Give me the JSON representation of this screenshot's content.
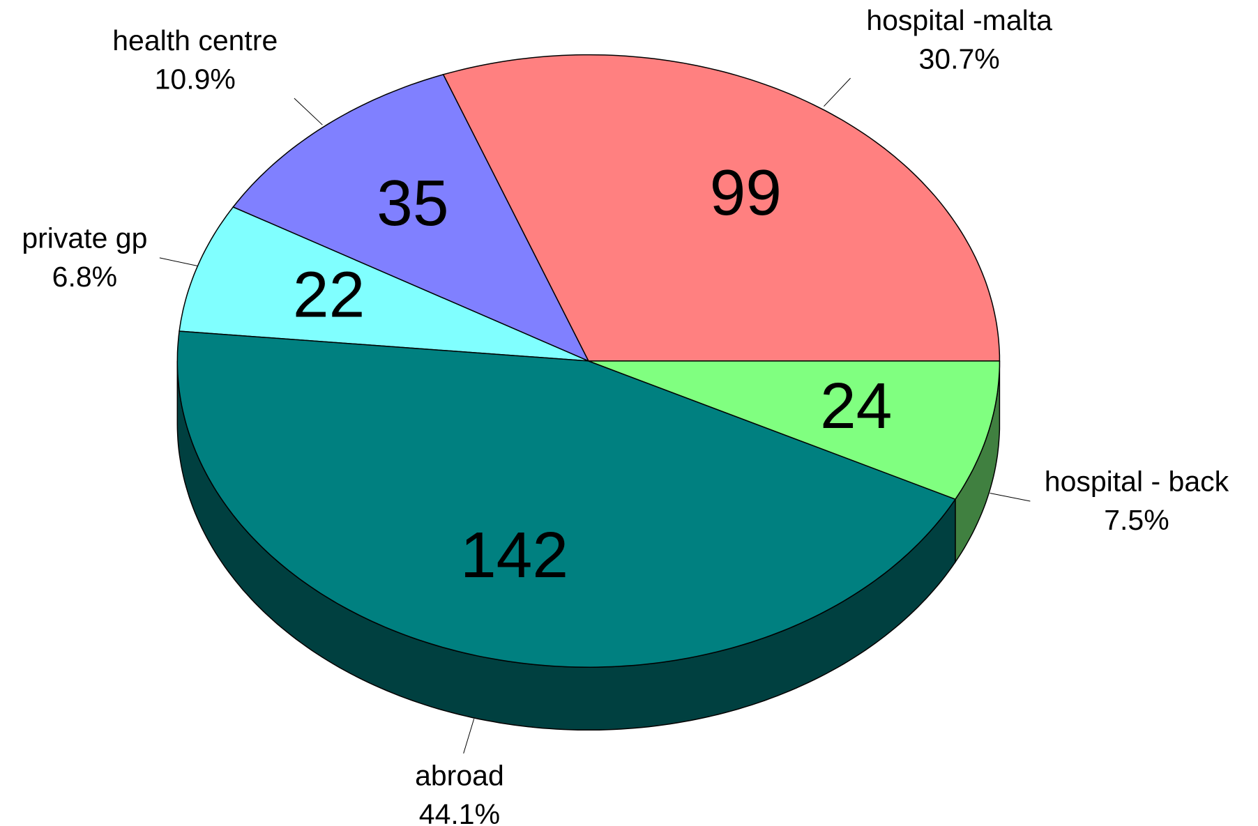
{
  "chart_data": {
    "type": "pie",
    "categories": [
      "hospital -malta",
      "health centre",
      "private gp",
      "abroad",
      "hospital - back"
    ],
    "values": [
      99,
      35,
      22,
      142,
      24
    ],
    "percent_labels": [
      "30.7%",
      "10.9%",
      "6.8%",
      "44.1%",
      "7.5%"
    ],
    "colors": [
      "#ff8080",
      "#8080ff",
      "#80ffff",
      "#008080",
      "#80ff80"
    ],
    "side_colors": [
      "#804040",
      "#404080",
      "#408080",
      "#004040",
      "#408040"
    ]
  }
}
